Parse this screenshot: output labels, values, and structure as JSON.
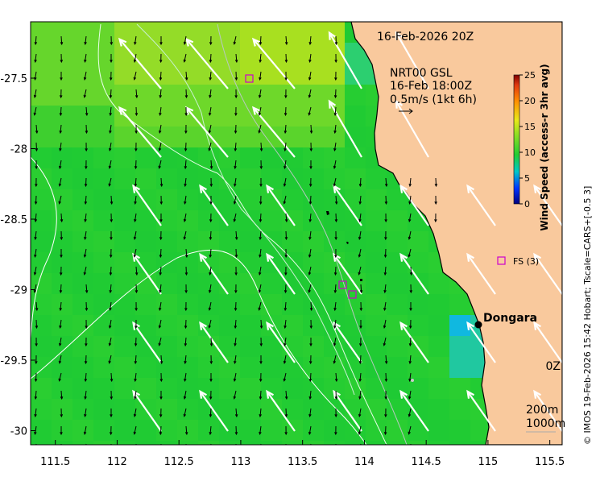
{
  "map": {
    "date_label": "16-Feb-2026 20Z",
    "x_ticks": [
      "111.5",
      "112",
      "112.5",
      "113",
      "113.5",
      "114",
      "114.5",
      "115",
      "115.5"
    ],
    "y_ticks": [
      "-27.5",
      "-28",
      "-28.5",
      "-29",
      "-29.5",
      "-30"
    ],
    "x_range": [
      111.3,
      115.6
    ],
    "y_range": [
      -30.1,
      -27.1
    ],
    "land_color": "#f9c99d",
    "sea_color": "#22cc33",
    "arrow_color": "#ffffff"
  },
  "overlay": {
    "product": "NRT00 GSL",
    "time": "16-Feb 18:00Z",
    "scale": "0.5m/s (1kt 6h)"
  },
  "colorbar": {
    "label": "Wind Speed (access-r 3hr avg)",
    "ticks": [
      "25",
      "20",
      "15",
      "10",
      "5",
      "0"
    ],
    "min": 0,
    "max": 25
  },
  "places": {
    "dongara": {
      "name": "Dongara",
      "lon": 114.92,
      "lat": -29.25
    },
    "fs_label": "FS (3)",
    "fs_lon": 115.1,
    "fs_lat": -28.83
  },
  "contours": {
    "c200": "200m",
    "c1000": "1000m",
    "clipped_label": "0Z"
  },
  "credit": "© IMOS 19-Feb-2026 15:42 Hobart; Tscale=CARS+[-0.5 3]"
}
